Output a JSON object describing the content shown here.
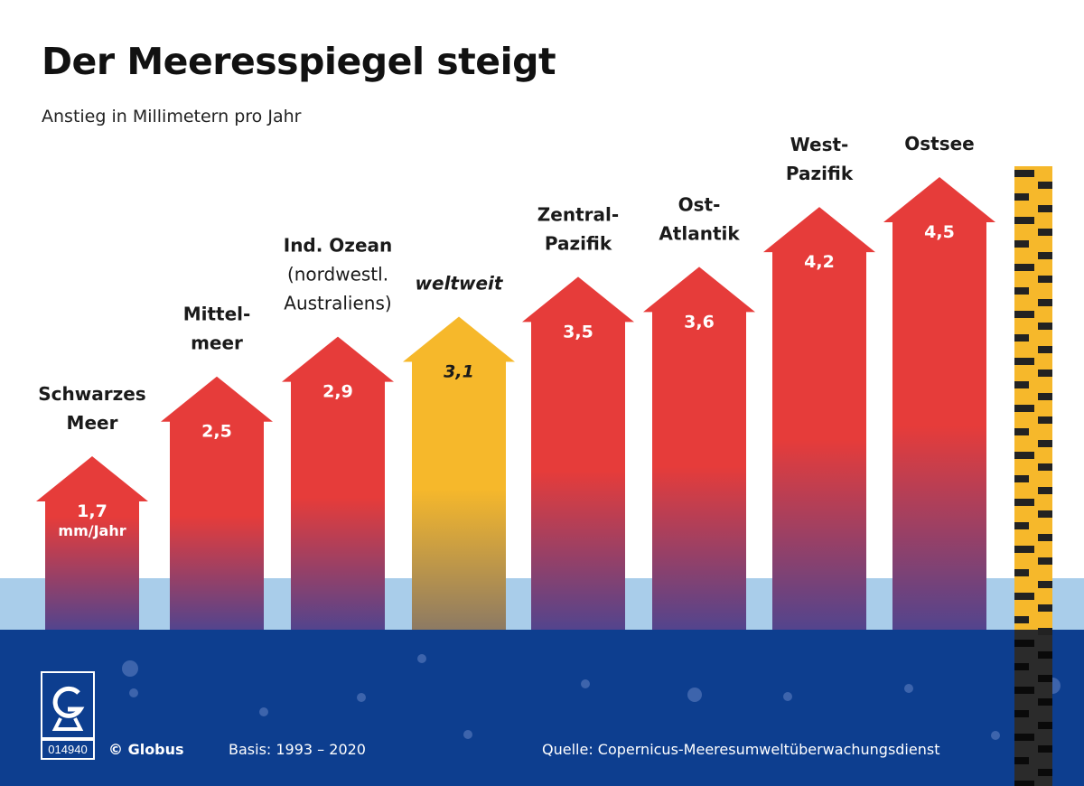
{
  "title": "Der Meeresspiegel steigt",
  "subtitle": "Anstieg in Millimetern pro Jahr",
  "chart_data": {
    "type": "bar",
    "title": "Der Meeresspiegel steigt",
    "ylabel": "Anstieg in Millimetern pro Jahr",
    "categories": [
      "Schwarzes Meer",
      "Mittelmeer",
      "Ind. Ozean (nordwestl. Australiens)",
      "weltweit",
      "Zentral-Pazifik",
      "Ost-Atlantik",
      "West-Pazifik",
      "Ostsee"
    ],
    "category_label_lines": [
      [
        "Schwarzes",
        "Meer"
      ],
      [
        "Mittel-",
        "meer"
      ],
      [
        "Ind. Ozean",
        "(nordwestl.",
        "Australiens)"
      ],
      [
        "weltweit"
      ],
      [
        "Zentral-",
        "Pazifik"
      ],
      [
        "Ost-",
        "Atlantik"
      ],
      [
        "West-",
        "Pazifik"
      ],
      [
        "Ostsee"
      ]
    ],
    "values": [
      1.7,
      2.5,
      2.9,
      3.1,
      3.5,
      3.6,
      4.2,
      4.5
    ],
    "value_labels": [
      "1,7",
      "2,5",
      "2,9",
      "3,1",
      "3,5",
      "3,6",
      "4,2",
      "4,5"
    ],
    "unit_label": "mm/Jahr",
    "highlight": "weltweit",
    "ylim": [
      0,
      4.5
    ],
    "colors": {
      "bar": "#e63c3a",
      "highlight": "#f6b82b",
      "water_light": "#a9cdea",
      "water_deep": "#0d3e8f",
      "bar_fade": "#53448d",
      "highlight_fade": "#8d7a63"
    }
  },
  "footer": {
    "copyright": "© Globus",
    "basis": "Basis: 1993 – 2020",
    "source": "Quelle: Copernicus-Meeresumweltüberwachungsdienst",
    "logo_code": "014940"
  }
}
